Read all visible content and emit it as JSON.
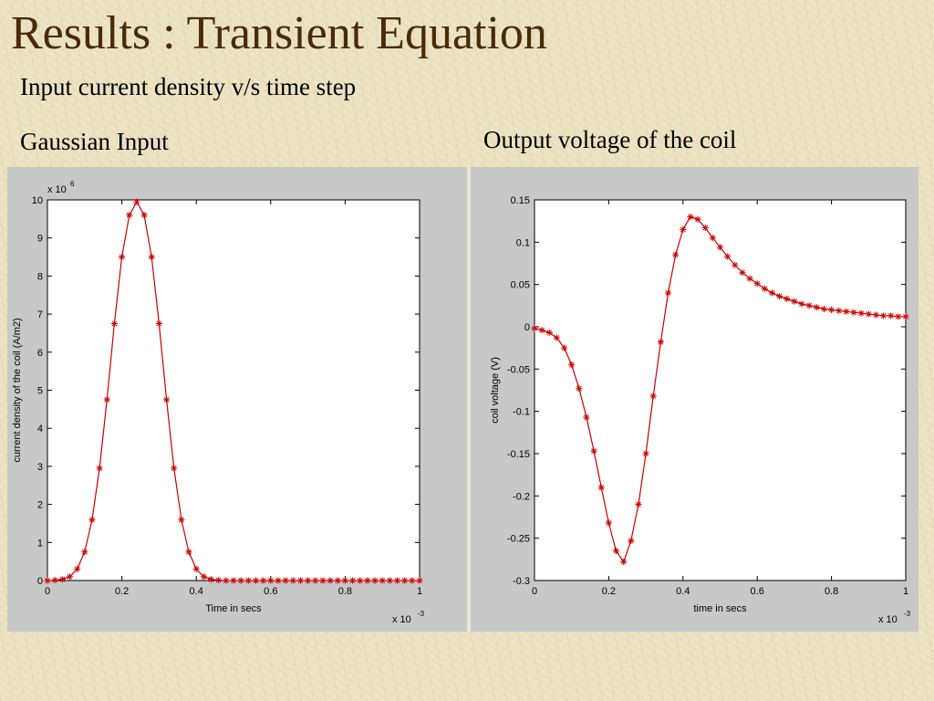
{
  "slide": {
    "title": "Results : Transient Equation",
    "subtitle": "Input current density v/s time step",
    "left_heading": "Gaussian Input",
    "right_heading": "Output voltage of the coil"
  },
  "colors": {
    "title": "#4a2a08",
    "series": "#cc0000"
  },
  "chart_data": [
    {
      "type": "line",
      "markers": "asterisk",
      "xlabel": "Time in secs",
      "ylabel": "current density of the coil (A/m2)",
      "x_multiplier": "x 10",
      "x_exponent": "-3",
      "y_multiplier": "x 10",
      "y_exponent": "6",
      "xlim": [
        0,
        1
      ],
      "ylim": [
        0,
        10
      ],
      "x_ticks": [
        0,
        0.2,
        0.4,
        0.6,
        0.8,
        1
      ],
      "x_tick_labels": [
        "0",
        "0.2",
        "0.4",
        "0.6",
        "0.8",
        "1"
      ],
      "y_ticks": [
        0,
        1,
        2,
        3,
        4,
        5,
        6,
        7,
        8,
        9,
        10
      ],
      "y_tick_labels": [
        "0",
        "1",
        "2",
        "3",
        "4",
        "5",
        "6",
        "7",
        "8",
        "9",
        "10"
      ],
      "grid": false,
      "series": [
        {
          "x": [
            0,
            0.02,
            0.04,
            0.06,
            0.08,
            0.1,
            0.12,
            0.14,
            0.16,
            0.18,
            0.2,
            0.22,
            0.24,
            0.26,
            0.28,
            0.3,
            0.32,
            0.34,
            0.36,
            0.38,
            0.4,
            0.42,
            0.44,
            0.46,
            0.48,
            0.5,
            0.52,
            0.54,
            0.56,
            0.58,
            0.6,
            0.62,
            0.64,
            0.66,
            0.68,
            0.7,
            0.72,
            0.74,
            0.76,
            0.78,
            0.8,
            0.82,
            0.84,
            0.86,
            0.88,
            0.9,
            0.92,
            0.94,
            0.96,
            0.98,
            1.0
          ],
          "y": [
            0.0,
            0.01,
            0.03,
            0.1,
            0.3,
            0.75,
            1.6,
            2.95,
            4.75,
            6.75,
            8.5,
            9.6,
            9.95,
            9.6,
            8.5,
            6.75,
            4.75,
            2.95,
            1.6,
            0.75,
            0.3,
            0.1,
            0.03,
            0.01,
            0.0,
            0.0,
            0.0,
            0.0,
            0.0,
            0.0,
            0.0,
            0.0,
            0.0,
            0.0,
            0.0,
            0.0,
            0.0,
            0.0,
            0.0,
            0.0,
            0.0,
            0.0,
            0.0,
            0.0,
            0.0,
            0.0,
            0.0,
            0.0,
            0.0,
            0.0,
            0.0
          ]
        }
      ]
    },
    {
      "type": "line",
      "markers": "asterisk",
      "xlabel": "time in secs",
      "ylabel": "coil voltage (V)",
      "x_multiplier": "x 10",
      "x_exponent": "-3",
      "xlim": [
        0,
        1
      ],
      "ylim": [
        -0.3,
        0.15
      ],
      "x_ticks": [
        0,
        0.2,
        0.4,
        0.6,
        0.8,
        1
      ],
      "x_tick_labels": [
        "0",
        "0.2",
        "0.4",
        "0.6",
        "0.8",
        "1"
      ],
      "y_ticks": [
        0.15,
        0.1,
        0.05,
        0,
        -0.05,
        -0.1,
        -0.15,
        -0.2,
        -0.25,
        -0.3
      ],
      "y_tick_labels": [
        "0.15",
        "0.1",
        "0.05",
        "0",
        "-0.05",
        "-0.1",
        "-0.15",
        "-0.2",
        "-0.25",
        "-0.3"
      ],
      "grid": false,
      "series": [
        {
          "x": [
            0,
            0.02,
            0.04,
            0.06,
            0.08,
            0.1,
            0.12,
            0.14,
            0.16,
            0.18,
            0.2,
            0.22,
            0.24,
            0.26,
            0.28,
            0.3,
            0.32,
            0.34,
            0.36,
            0.38,
            0.4,
            0.42,
            0.44,
            0.46,
            0.48,
            0.5,
            0.52,
            0.54,
            0.56,
            0.58,
            0.6,
            0.62,
            0.64,
            0.66,
            0.68,
            0.7,
            0.72,
            0.74,
            0.76,
            0.78,
            0.8,
            0.82,
            0.84,
            0.86,
            0.88,
            0.9,
            0.92,
            0.94,
            0.96,
            0.98,
            1.0
          ],
          "y": [
            -0.002,
            -0.004,
            -0.007,
            -0.013,
            -0.025,
            -0.045,
            -0.073,
            -0.107,
            -0.147,
            -0.19,
            -0.232,
            -0.265,
            -0.278,
            -0.253,
            -0.21,
            -0.15,
            -0.082,
            -0.018,
            0.04,
            0.085,
            0.115,
            0.13,
            0.127,
            0.117,
            0.105,
            0.094,
            0.083,
            0.073,
            0.064,
            0.057,
            0.051,
            0.045,
            0.04,
            0.036,
            0.033,
            0.03,
            0.027,
            0.025,
            0.023,
            0.021,
            0.02,
            0.019,
            0.018,
            0.017,
            0.016,
            0.015,
            0.014,
            0.013,
            0.013,
            0.012,
            0.012
          ]
        }
      ]
    }
  ]
}
